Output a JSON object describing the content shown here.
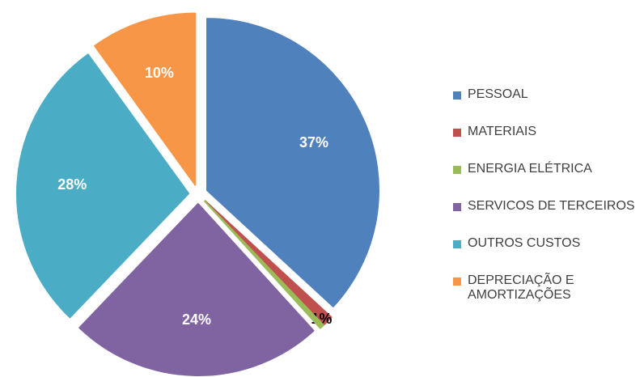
{
  "chart_data": {
    "type": "pie",
    "categories": [
      "PESSOAL",
      "MATERIAIS",
      "ENERGIA ELÉTRICA",
      "SERVICOS DE TERCEIROS",
      "OUTROS CUSTOS",
      "DEPRECIAÇÃO E AMORTIZAÇÕES"
    ],
    "values": [
      37,
      1,
      0.4,
      24,
      28,
      10
    ],
    "value_labels": [
      "37%",
      "1%",
      null,
      "24%",
      "28%",
      "10%"
    ],
    "colors": [
      "#4f81bd",
      "#c0504d",
      "#9bbb59",
      "#8064a2",
      "#4bacc6",
      "#f79646"
    ],
    "legend": "right"
  }
}
